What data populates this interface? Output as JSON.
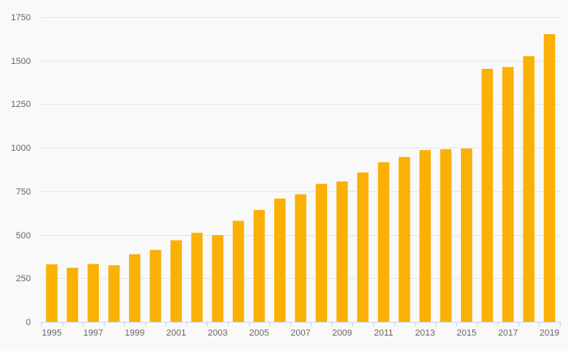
{
  "chart_data": {
    "type": "bar",
    "title": "",
    "xlabel": "",
    "ylabel": "",
    "categories": [
      "1995",
      "1996",
      "1997",
      "1998",
      "1999",
      "2000",
      "2001",
      "2002",
      "2003",
      "2004",
      "2005",
      "2006",
      "2007",
      "2008",
      "2009",
      "2010",
      "2011",
      "2012",
      "2013",
      "2014",
      "2015",
      "2016",
      "2017",
      "2018",
      "2019"
    ],
    "values": [
      330,
      310,
      332,
      325,
      388,
      413,
      468,
      511,
      498,
      580,
      642,
      708,
      732,
      792,
      806,
      858,
      916,
      946,
      986,
      991,
      995,
      1452,
      1463,
      1525,
      1652
    ],
    "ylim": [
      0,
      1750
    ],
    "y_ticks": [
      0,
      250,
      500,
      750,
      1000,
      1250,
      1500,
      1750
    ],
    "y_tick_labels": [
      "0",
      "250",
      "500",
      "750",
      "1000",
      "1250",
      "1500",
      "1750"
    ],
    "x_tick_labels_shown": [
      "1995",
      "1997",
      "1999",
      "2001",
      "2003",
      "2005",
      "2007",
      "2009",
      "2011",
      "2013",
      "2015",
      "2017",
      "2019"
    ],
    "x_label_step": 2,
    "grid": true,
    "legend": false,
    "colors": {
      "bar": "#FAB005",
      "background": "#F9F9F9",
      "gridline": "#E6E6E6",
      "axis_line": "#CCD6EB",
      "label_text": "#666666"
    }
  }
}
